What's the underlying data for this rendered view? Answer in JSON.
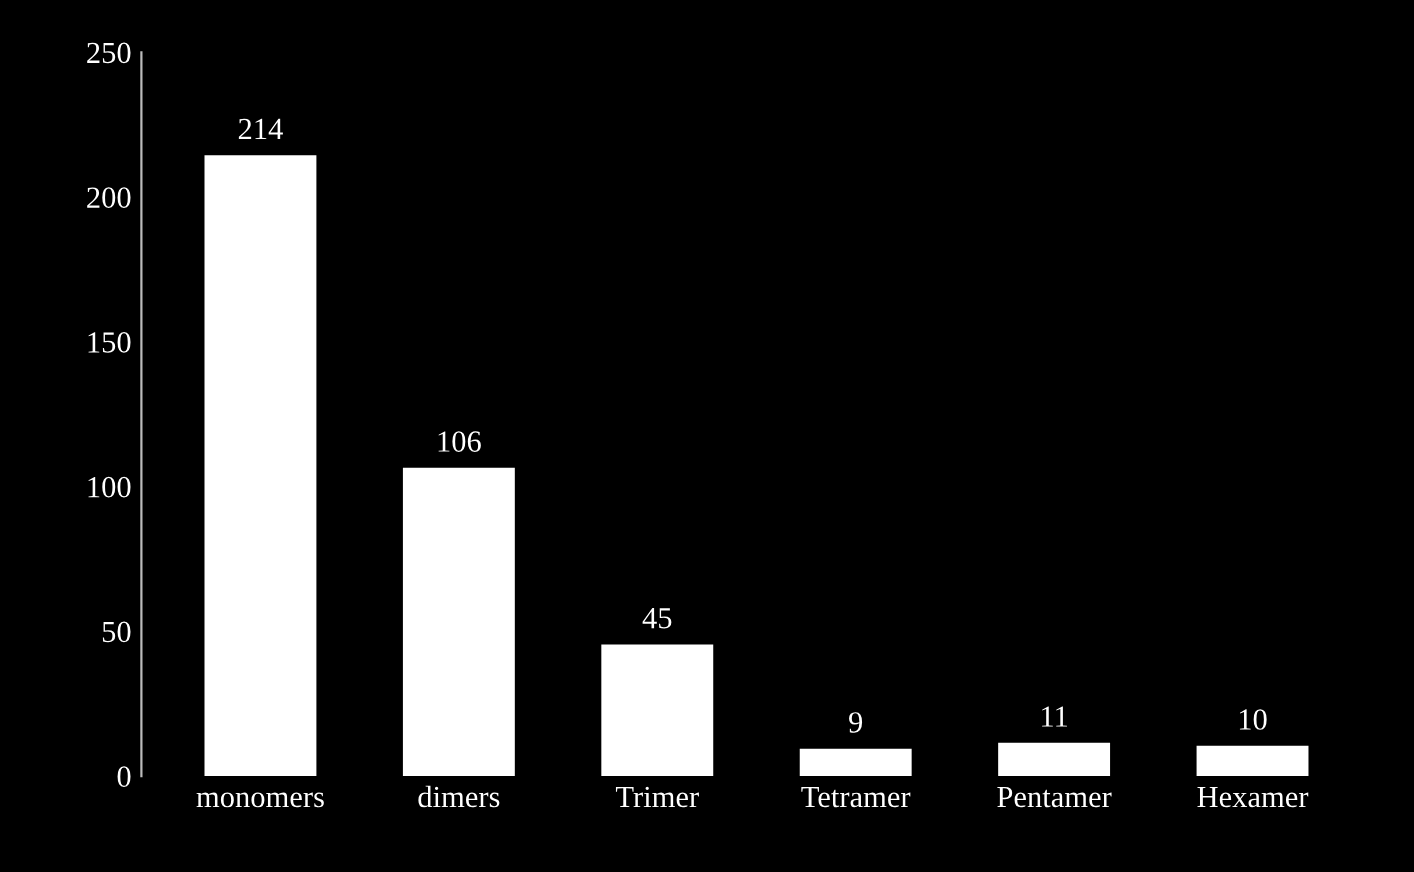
{
  "chart_data": {
    "type": "bar",
    "categories": [
      "monomers",
      "dimers",
      "Trimer",
      "Tetramer",
      "Pentamer",
      "Hexamer"
    ],
    "values": [
      214,
      106,
      45,
      9,
      11,
      10
    ],
    "color": "#ffffff",
    "ylim": [
      0,
      250
    ],
    "yticks": [
      0,
      50,
      100,
      150,
      200,
      250
    ],
    "data_labels": true,
    "grid": false,
    "legend": false
  }
}
